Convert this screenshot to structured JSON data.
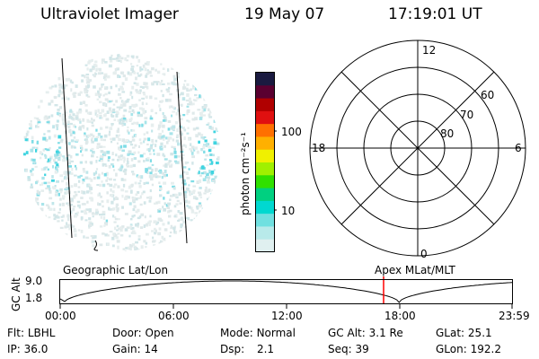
{
  "header": {
    "title": "Ultraviolet Imager",
    "date": "19 May 07",
    "time": "17:19:01 UT"
  },
  "colorbar": {
    "unit_label": "photon cm⁻²s⁻¹",
    "ticks": [
      "100",
      "10"
    ],
    "colors": [
      "#1a1a40",
      "#5a0030",
      "#b00000",
      "#e01010",
      "#ff7000",
      "#ffb000",
      "#f0f000",
      "#a0f000",
      "#30e000",
      "#00d080",
      "#00d8d0",
      "#70e0e0",
      "#b8eaea",
      "#e0f0f0"
    ]
  },
  "polar_grid": {
    "clock_labels": [
      "12",
      "18",
      "6",
      "0"
    ],
    "lat_labels": [
      "60",
      "70",
      "80"
    ]
  },
  "timeline": {
    "ylabel": "GC Alt",
    "y_ticks": [
      "9.0",
      "1.8"
    ],
    "left_label": "Geographic Lat/Lon",
    "right_label": "Apex MLat/MLT",
    "x_ticks": [
      "00:00",
      "06:00",
      "12:00",
      "18:00",
      "23:59"
    ],
    "marker_color": "#ff0000"
  },
  "info": {
    "row1": [
      {
        "label": "Flt:",
        "value": "LBHL"
      },
      {
        "label": "Door:",
        "value": "Open"
      },
      {
        "label": "Mode:",
        "value": "Normal"
      },
      {
        "label": "GC Alt:",
        "value": "3.1 Re"
      },
      {
        "label": "GLat:",
        "value": "25.1"
      }
    ],
    "row2": [
      {
        "label": "IP:",
        "value": "36.0"
      },
      {
        "label": "Gain:",
        "value": "14"
      },
      {
        "label": "Dsp:",
        "value": "2.1"
      },
      {
        "label": "Seq:",
        "value": "39"
      },
      {
        "label": "GLon:",
        "value": "192.2"
      }
    ]
  }
}
